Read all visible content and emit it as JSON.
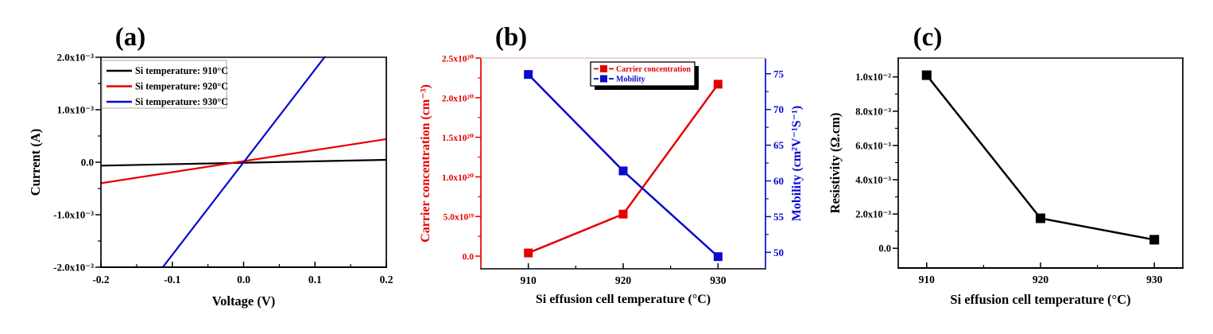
{
  "figure": {
    "background": "#ffffff"
  },
  "colors": {
    "red": "#e60000",
    "blue": "#0909cf",
    "black": "#000000",
    "panel_b_top_spine": "#eec3c3",
    "panel_b_bottom_spine": "#3f3f3f",
    "legend_border_gray": "#aaaaaa"
  },
  "chart_data": [
    {
      "id": "a",
      "type": "line",
      "panel_label": "(a)",
      "xlabel": "Voltage (V)",
      "ylabel": "Current (A)",
      "xlim": [
        -0.2,
        0.2
      ],
      "ylim": [
        -0.002,
        0.002
      ],
      "xticks": [
        -0.2,
        -0.1,
        0,
        0.1,
        0.2
      ],
      "xtick_labels": [
        "-0.2",
        "-0.1",
        "0.0",
        "0.1",
        "0.2"
      ],
      "xminor": [
        -0.15,
        -0.05,
        0.05,
        0.15
      ],
      "yticks": [
        0.002,
        0.001,
        0,
        -0.001,
        -0.002
      ],
      "ytick_labels": [
        "2.0x10⁻³",
        "1.0x10⁻³",
        "0.0",
        "-1.0x10⁻³",
        "-2.0x10⁻³"
      ],
      "yminor": [
        0.0015,
        0.0005,
        -0.0005,
        -0.0015
      ],
      "grid": false,
      "legend": {
        "position": "top-left",
        "border": "#aaaaaa",
        "shadow": false
      },
      "spines": {
        "left": "#000000",
        "right": "#000000",
        "top": "#000000",
        "bottom": "#000000"
      },
      "series": [
        {
          "name": "Si temperature: 910°C",
          "color": "#000000",
          "x": [
            -0.2,
            0.2
          ],
          "y": [
            -6.5e-05,
            4.5e-05
          ]
        },
        {
          "name": "Si temperature: 920°C",
          "color": "#e60000",
          "x": [
            -0.2,
            0.2
          ],
          "y": [
            -0.0004,
            0.00044
          ]
        },
        {
          "name": "Si temperature: 930°C",
          "color": "#0909cf",
          "x": [
            -0.2,
            0.2
          ],
          "y": [
            -0.00353,
            0.00353
          ]
        }
      ]
    },
    {
      "id": "b",
      "type": "line",
      "panel_label": "(b)",
      "xlabel": "Si effusion cell temperature (°C)",
      "ylabel_left": "Carrier concentration (cm⁻³)",
      "ylabel_right": "Mobility (cm²V⁻¹S⁻¹)",
      "xlim": [
        905,
        935
      ],
      "categories": [
        910,
        920,
        930
      ],
      "xtick_labels": [
        "910",
        "920",
        "930"
      ],
      "xminor": [
        915,
        925
      ],
      "ylim_left": [
        -1.6e+19,
        2.5e+20
      ],
      "yticks_left": [
        2.5e+20,
        2e+20,
        1.5e+20,
        1e+20,
        5e+19,
        0
      ],
      "ytick_labels_left": [
        "2.5x10²⁰",
        "2.0x10²⁰",
        "1.5x10²⁰",
        "1.0x10²⁰",
        "5.0x10¹⁹",
        "0.0"
      ],
      "yminor_left": [
        2.25e+20,
        1.75e+20,
        1.25e+20,
        7.5e+19,
        2.5e+19
      ],
      "ylim_right": [
        47.7,
        77.2
      ],
      "yticks_right": [
        75,
        70,
        65,
        60,
        55,
        50
      ],
      "ytick_labels_right": [
        "75",
        "70",
        "65",
        "60",
        "55",
        "50"
      ],
      "yminor_right": [
        72.5,
        67.5,
        62.5,
        57.5,
        52.5
      ],
      "grid": false,
      "legend": {
        "position": "top-center",
        "border": "#000000",
        "shadow": true
      },
      "spines": {
        "left": "#e60000",
        "right": "#0909cf",
        "top": "#eec3c3",
        "bottom": "#3f3f3f"
      },
      "series": [
        {
          "name": "Carrier concentration",
          "axis": "left",
          "color": "#e60000",
          "values": [
            4e+18,
            5.3e+19,
            2.17e+20
          ]
        },
        {
          "name": "Mobility",
          "axis": "right",
          "color": "#0909cf",
          "values": [
            74.9,
            61.4,
            49.4
          ]
        }
      ]
    },
    {
      "id": "c",
      "type": "line",
      "panel_label": "(c)",
      "xlabel": "Si effusion cell temperature (°C)",
      "ylabel": "Resistivity (Ω.cm)",
      "xlim": [
        907.5,
        932.5
      ],
      "categories": [
        910,
        920,
        930
      ],
      "xtick_labels": [
        "910",
        "920",
        "930"
      ],
      "xminor": [
        915,
        925
      ],
      "ylim": [
        -0.00115,
        0.0111
      ],
      "yticks": [
        0.01,
        0.008,
        0.006,
        0.004,
        0.002,
        0
      ],
      "ytick_labels": [
        "1.0x10⁻²",
        "8.0x10⁻³",
        "6.0x10⁻³",
        "4.0x10⁻³",
        "2.0x10⁻³",
        "0.0"
      ],
      "yminor": [
        0.009,
        0.007,
        0.005,
        0.003,
        0.001
      ],
      "grid": false,
      "spines": {
        "left": "#000000",
        "right": "#000000",
        "top": "#000000",
        "bottom": "#000000"
      },
      "series": [
        {
          "name": "Resistivity",
          "color": "#000000",
          "values": [
            0.0101,
            0.00175,
            0.0005
          ]
        }
      ]
    }
  ]
}
